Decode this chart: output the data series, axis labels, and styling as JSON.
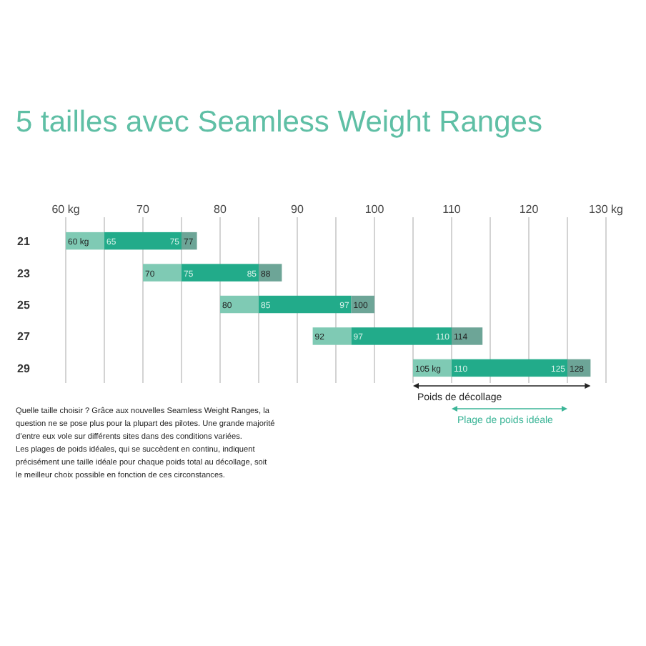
{
  "chart_data": {
    "type": "bar",
    "orientation": "horizontal",
    "title": "5 tailles avec Seamless Weight Ranges",
    "categories": [
      "21",
      "23",
      "25",
      "27",
      "29"
    ],
    "series": [
      {
        "color": "#7fcab4",
        "base": [
          60,
          70,
          80,
          92,
          105
        ],
        "values": [
          5,
          5,
          5,
          5,
          5
        ]
      },
      {
        "color": "#22ab8a",
        "base": [
          65,
          75,
          85,
          97,
          110
        ],
        "values": [
          10,
          10,
          12,
          13,
          15
        ]
      },
      {
        "color": "#6da597",
        "base": [
          75,
          85,
          97,
          110,
          125
        ],
        "values": [
          2,
          3,
          3,
          4,
          3
        ]
      }
    ],
    "xlim": [
      60,
      130
    ],
    "xticks": [
      {
        "value": 60,
        "label": "60 kg"
      },
      {
        "value": 65,
        "label": null
      },
      70,
      {
        "value": 75,
        "label": null
      },
      80,
      {
        "value": 85,
        "label": null
      },
      90,
      {
        "value": 95,
        "label": null
      },
      100,
      {
        "value": 105,
        "label": null
      },
      110,
      {
        "value": 115,
        "label": null
      },
      120,
      {
        "value": 125,
        "label": null
      },
      {
        "value": 130,
        "label": "130 kg"
      }
    ],
    "grid": "x",
    "annotations": [
      {
        "text": "60 kg",
        "x": 60,
        "y": "21"
      },
      {
        "text": "65",
        "x": 65,
        "y": "21"
      },
      {
        "text": "75",
        "x": 75,
        "y": "21"
      },
      {
        "text": "77",
        "x": 77,
        "y": "21"
      },
      {
        "text": "70",
        "x": 70,
        "y": "23"
      },
      {
        "text": "75",
        "x": 75,
        "y": "23"
      },
      {
        "text": "85",
        "x": 85,
        "y": "23"
      },
      {
        "text": "88",
        "x": 88,
        "y": "23"
      },
      {
        "text": "80",
        "x": 80,
        "y": "25"
      },
      {
        "text": "85",
        "x": 85,
        "y": "25"
      },
      {
        "text": "97",
        "x": 97,
        "y": "25"
      },
      {
        "text": "100",
        "x": 100,
        "y": "25"
      },
      {
        "text": "92",
        "x": 92,
        "y": "27"
      },
      {
        "text": "97",
        "x": 97,
        "y": "27"
      },
      {
        "text": "110",
        "x": 110,
        "y": "27"
      },
      {
        "text": "114",
        "x": 114,
        "y": "27"
      },
      {
        "text": "105 kg",
        "x": 105,
        "y": "29"
      },
      {
        "text": "110",
        "x": 110,
        "y": "29"
      },
      {
        "text": "125",
        "x": 125,
        "y": "29"
      },
      {
        "text": "128",
        "x": 128,
        "y": "29"
      },
      "Poids de décollage",
      "Plage de poids idéale",
      "Quelle taille choisir ? Grâce aux nouvelles Seamless Weight Ranges, la",
      "question ne se pose plus pour la plupart des pilotes. Une grande majorité",
      "d’entre eux vole sur différents sites dans des conditions variées.",
      "Les plages de poids idéales, qui se succèdent en continu, indiquent",
      "précisément une taille idéale pour chaque poids total au décollage, soit",
      "le meilleur choix possible en fonction de ces circonstances."
    ]
  }
}
